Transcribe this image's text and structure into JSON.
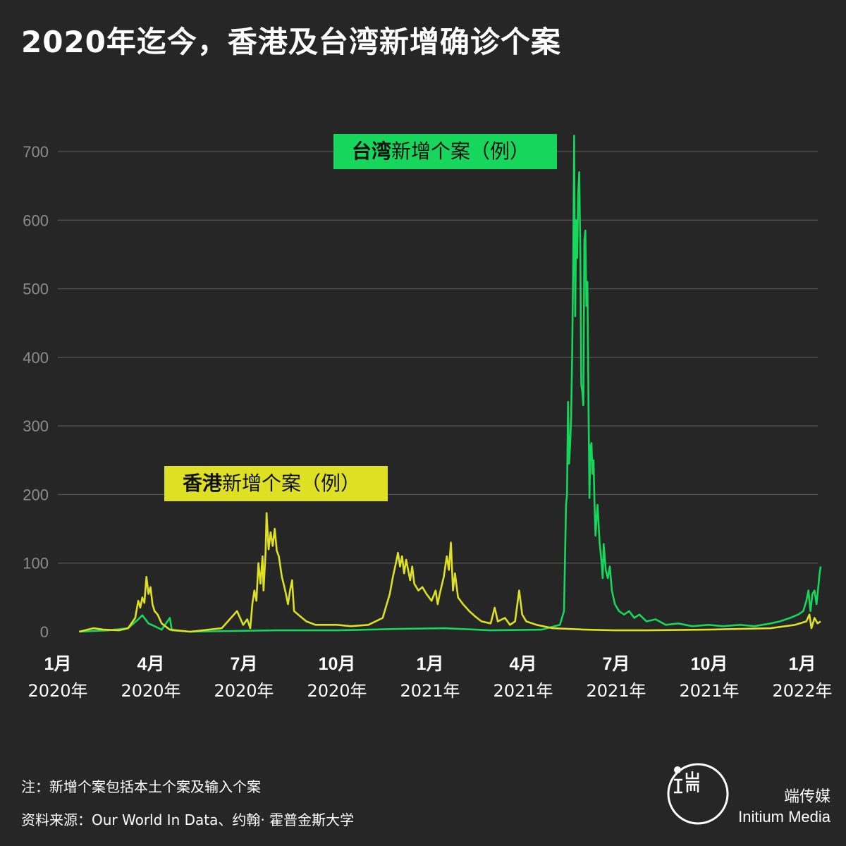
{
  "title": "2020年迄今，香港及台湾新增确诊个案",
  "colors": {
    "taiwan": "#17d65c",
    "hongkong": "#dde023",
    "background": "#262626",
    "grid": "#555555"
  },
  "labels": {
    "taiwan": {
      "bold": "台湾",
      "rest": "新增个案（例）"
    },
    "hongkong": {
      "bold": "香港",
      "rest": "新增个案（例）"
    }
  },
  "notes": {
    "note": "注：新增个案包括本土个案及输入个案",
    "source": "资料来源：Our World In Data、约翰· 霍普金斯大学"
  },
  "brand": {
    "cn": "端传媒",
    "en": "Initium Media",
    "logo_icon": "initium-logo-icon"
  },
  "chart_data": {
    "type": "line",
    "title": "2020年迄今，香港及台湾新增确诊个案",
    "xlabel": "",
    "ylabel": "",
    "ylim": [
      0,
      700
    ],
    "yticks": [
      0,
      100,
      200,
      300,
      400,
      500,
      600,
      700
    ],
    "x_range": [
      "2020-01",
      "2022-01"
    ],
    "x_ticks": [
      {
        "month": "1月",
        "year": "2020年"
      },
      {
        "month": "4月",
        "year": "2020年"
      },
      {
        "month": "7月",
        "year": "2020年"
      },
      {
        "month": "10月",
        "year": "2020年"
      },
      {
        "month": "1月",
        "year": "2021年"
      },
      {
        "month": "4月",
        "year": "2021年"
      },
      {
        "month": "7月",
        "year": "2021年"
      },
      {
        "month": "10月",
        "year": "2021年"
      },
      {
        "month": "1月",
        "year": "2022年"
      }
    ],
    "grid": true,
    "series": [
      {
        "name": "台湾新增个案（例）",
        "color": "#17d65c",
        "points": [
          [
            "2020-01-22",
            0
          ],
          [
            "2020-02-20",
            2
          ],
          [
            "2020-03-10",
            5
          ],
          [
            "2020-03-20",
            18
          ],
          [
            "2020-03-24",
            24
          ],
          [
            "2020-03-30",
            12
          ],
          [
            "2020-04-05",
            8
          ],
          [
            "2020-04-12",
            3
          ],
          [
            "2020-04-20",
            20
          ],
          [
            "2020-04-22",
            2
          ],
          [
            "2020-05-10",
            0
          ],
          [
            "2020-08-01",
            2
          ],
          [
            "2020-10-01",
            2
          ],
          [
            "2020-12-01",
            4
          ],
          [
            "2021-01-15",
            5
          ],
          [
            "2021-03-01",
            2
          ],
          [
            "2021-04-20",
            3
          ],
          [
            "2021-05-08",
            10
          ],
          [
            "2021-05-12",
            30
          ],
          [
            "2021-05-14",
            185
          ],
          [
            "2021-05-15",
            200
          ],
          [
            "2021-05-16",
            335
          ],
          [
            "2021-05-17",
            245
          ],
          [
            "2021-05-18",
            270
          ],
          [
            "2021-05-19",
            310
          ],
          [
            "2021-05-20",
            400
          ],
          [
            "2021-05-21",
            530
          ],
          [
            "2021-05-22",
            723
          ],
          [
            "2021-05-23",
            460
          ],
          [
            "2021-05-24",
            600
          ],
          [
            "2021-05-25",
            545
          ],
          [
            "2021-05-26",
            640
          ],
          [
            "2021-05-27",
            670
          ],
          [
            "2021-05-28",
            560
          ],
          [
            "2021-05-29",
            360
          ],
          [
            "2021-05-30",
            350
          ],
          [
            "2021-05-31",
            330
          ],
          [
            "2021-06-01",
            570
          ],
          [
            "2021-06-02",
            585
          ],
          [
            "2021-06-03",
            475
          ],
          [
            "2021-06-04",
            510
          ],
          [
            "2021-06-05",
            350
          ],
          [
            "2021-06-06",
            195
          ],
          [
            "2021-06-07",
            270
          ],
          [
            "2021-06-08",
            275
          ],
          [
            "2021-06-09",
            230
          ],
          [
            "2021-06-10",
            250
          ],
          [
            "2021-06-11",
            185
          ],
          [
            "2021-06-12",
            140
          ],
          [
            "2021-06-13",
            165
          ],
          [
            "2021-06-14",
            185
          ],
          [
            "2021-06-16",
            130
          ],
          [
            "2021-06-18",
            100
          ],
          [
            "2021-06-19",
            78
          ],
          [
            "2021-06-20",
            128
          ],
          [
            "2021-06-22",
            90
          ],
          [
            "2021-06-24",
            78
          ],
          [
            "2021-06-26",
            95
          ],
          [
            "2021-06-28",
            60
          ],
          [
            "2021-07-01",
            40
          ],
          [
            "2021-07-05",
            30
          ],
          [
            "2021-07-10",
            25
          ],
          [
            "2021-07-15",
            30
          ],
          [
            "2021-07-20",
            20
          ],
          [
            "2021-07-25",
            25
          ],
          [
            "2021-08-01",
            15
          ],
          [
            "2021-08-10",
            18
          ],
          [
            "2021-08-20",
            10
          ],
          [
            "2021-09-01",
            12
          ],
          [
            "2021-09-15",
            8
          ],
          [
            "2021-10-01",
            10
          ],
          [
            "2021-10-15",
            8
          ],
          [
            "2021-11-01",
            10
          ],
          [
            "2021-11-15",
            8
          ],
          [
            "2021-12-01",
            12
          ],
          [
            "2021-12-10",
            15
          ],
          [
            "2021-12-20",
            20
          ],
          [
            "2021-12-28",
            25
          ],
          [
            "2022-01-02",
            30
          ],
          [
            "2022-01-05",
            45
          ],
          [
            "2022-01-07",
            60
          ],
          [
            "2022-01-09",
            30
          ],
          [
            "2022-01-11",
            55
          ],
          [
            "2022-01-13",
            60
          ],
          [
            "2022-01-15",
            40
          ],
          [
            "2022-01-18",
            85
          ],
          [
            "2022-01-19",
            95
          ]
        ]
      },
      {
        "name": "香港新增个案（例）",
        "color": "#dde023",
        "points": [
          [
            "2020-01-22",
            0
          ],
          [
            "2020-02-05",
            5
          ],
          [
            "2020-02-15",
            3
          ],
          [
            "2020-03-01",
            2
          ],
          [
            "2020-03-10",
            5
          ],
          [
            "2020-03-17",
            20
          ],
          [
            "2020-03-20",
            45
          ],
          [
            "2020-03-22",
            35
          ],
          [
            "2020-03-24",
            50
          ],
          [
            "2020-03-26",
            42
          ],
          [
            "2020-03-28",
            80
          ],
          [
            "2020-03-30",
            55
          ],
          [
            "2020-04-01",
            65
          ],
          [
            "2020-04-03",
            40
          ],
          [
            "2020-04-05",
            30
          ],
          [
            "2020-04-08",
            25
          ],
          [
            "2020-04-12",
            12
          ],
          [
            "2020-04-20",
            3
          ],
          [
            "2020-05-10",
            0
          ],
          [
            "2020-06-10",
            5
          ],
          [
            "2020-06-25",
            30
          ],
          [
            "2020-07-01",
            10
          ],
          [
            "2020-07-05",
            18
          ],
          [
            "2020-07-08",
            5
          ],
          [
            "2020-07-10",
            40
          ],
          [
            "2020-07-12",
            60
          ],
          [
            "2020-07-14",
            45
          ],
          [
            "2020-07-16",
            100
          ],
          [
            "2020-07-18",
            70
          ],
          [
            "2020-07-20",
            110
          ],
          [
            "2020-07-21",
            60
          ],
          [
            "2020-07-23",
            115
          ],
          [
            "2020-07-24",
            173
          ],
          [
            "2020-07-26",
            120
          ],
          [
            "2020-07-28",
            145
          ],
          [
            "2020-07-30",
            125
          ],
          [
            "2020-08-01",
            150
          ],
          [
            "2020-08-03",
            118
          ],
          [
            "2020-08-05",
            110
          ],
          [
            "2020-08-08",
            80
          ],
          [
            "2020-08-10",
            68
          ],
          [
            "2020-08-12",
            55
          ],
          [
            "2020-08-14",
            40
          ],
          [
            "2020-08-16",
            60
          ],
          [
            "2020-08-18",
            75
          ],
          [
            "2020-08-20",
            30
          ],
          [
            "2020-08-24",
            25
          ],
          [
            "2020-09-01",
            15
          ],
          [
            "2020-09-10",
            10
          ],
          [
            "2020-10-01",
            10
          ],
          [
            "2020-10-15",
            8
          ],
          [
            "2020-11-01",
            10
          ],
          [
            "2020-11-15",
            20
          ],
          [
            "2020-11-22",
            55
          ],
          [
            "2020-11-25",
            80
          ],
          [
            "2020-11-28",
            100
          ],
          [
            "2020-11-30",
            115
          ],
          [
            "2020-12-02",
            95
          ],
          [
            "2020-12-04",
            110
          ],
          [
            "2020-12-06",
            85
          ],
          [
            "2020-12-08",
            105
          ],
          [
            "2020-12-10",
            90
          ],
          [
            "2020-12-12",
            75
          ],
          [
            "2020-12-14",
            95
          ],
          [
            "2020-12-16",
            70
          ],
          [
            "2020-12-20",
            60
          ],
          [
            "2020-12-24",
            65
          ],
          [
            "2020-12-28",
            55
          ],
          [
            "2021-01-02",
            45
          ],
          [
            "2021-01-06",
            60
          ],
          [
            "2021-01-08",
            40
          ],
          [
            "2021-01-10",
            55
          ],
          [
            "2021-01-14",
            80
          ],
          [
            "2021-01-17",
            110
          ],
          [
            "2021-01-19",
            90
          ],
          [
            "2021-01-21",
            130
          ],
          [
            "2021-01-23",
            60
          ],
          [
            "2021-01-25",
            85
          ],
          [
            "2021-01-28",
            50
          ],
          [
            "2021-02-02",
            40
          ],
          [
            "2021-02-08",
            30
          ],
          [
            "2021-02-14",
            22
          ],
          [
            "2021-02-20",
            15
          ],
          [
            "2021-03-01",
            12
          ],
          [
            "2021-03-05",
            35
          ],
          [
            "2021-03-08",
            15
          ],
          [
            "2021-03-15",
            20
          ],
          [
            "2021-03-20",
            10
          ],
          [
            "2021-03-25",
            15
          ],
          [
            "2021-03-29",
            60
          ],
          [
            "2021-04-01",
            25
          ],
          [
            "2021-04-05",
            15
          ],
          [
            "2021-04-15",
            10
          ],
          [
            "2021-05-01",
            5
          ],
          [
            "2021-06-01",
            3
          ],
          [
            "2021-07-01",
            2
          ],
          [
            "2021-08-01",
            2
          ],
          [
            "2021-10-01",
            3
          ],
          [
            "2021-12-01",
            5
          ],
          [
            "2021-12-25",
            10
          ],
          [
            "2022-01-05",
            15
          ],
          [
            "2022-01-08",
            25
          ],
          [
            "2022-01-10",
            5
          ],
          [
            "2022-01-13",
            20
          ],
          [
            "2022-01-16",
            12
          ],
          [
            "2022-01-19",
            15
          ]
        ]
      }
    ]
  }
}
